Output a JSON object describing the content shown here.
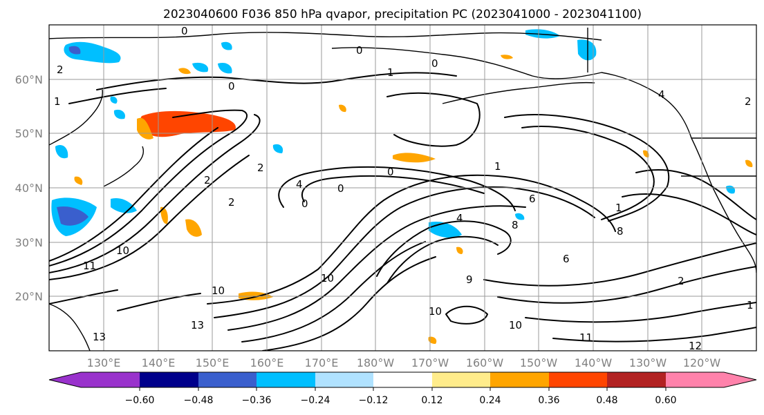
{
  "title": "2023040600 F036 850 hPa qvapor, precipitation PC (2023041000 - 2023041100)",
  "map": {
    "lat_ticks": [
      "60°N",
      "50°N",
      "40°N",
      "30°N",
      "20°N"
    ],
    "lon_ticks": [
      "130°E",
      "140°E",
      "150°E",
      "160°E",
      "170°E",
      "180°W",
      "170°W",
      "160°W",
      "150°W",
      "140°W",
      "130°W",
      "120°W"
    ],
    "grid": true,
    "projection": "PlateCarree",
    "extent_deg": {
      "lon_min": 122,
      "lon_max": 252,
      "lat_min": 10,
      "lat_max": 70
    },
    "contour_labels": [
      "0",
      "0",
      "0",
      "0",
      "0",
      "0",
      "0",
      "1",
      "1",
      "1",
      "1",
      "1",
      "2",
      "2",
      "2",
      "2",
      "2",
      "2",
      "4",
      "4",
      "4",
      "6",
      "6",
      "8",
      "8",
      "9",
      "10",
      "10",
      "10",
      "10",
      "10",
      "11",
      "11",
      "12",
      "13",
      "13"
    ]
  },
  "colorbar": {
    "ticks": [
      "−0.60",
      "−0.48",
      "−0.36",
      "−0.24",
      "−0.12",
      "0.12",
      "0.24",
      "0.36",
      "0.48",
      "0.60"
    ],
    "colors": [
      "#9932cc",
      "#00008b",
      "#3a5fcd",
      "#00bfff",
      "#b0e2ff",
      "#ffffff",
      "#ffec8b",
      "#ffa500",
      "#ff4500",
      "#b22222",
      "#ff82ab"
    ]
  }
}
